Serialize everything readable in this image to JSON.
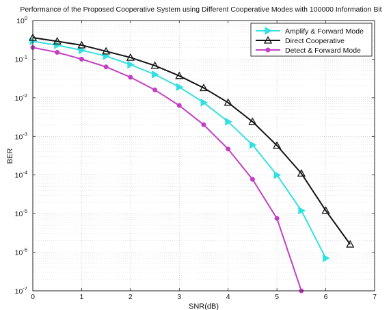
{
  "chart_data": {
    "type": "line",
    "title": "Performance of the Proposed Cooperative System using Different Cooperative Modes with 100000 Information Bit",
    "xlabel": "SNR(dB)",
    "ylabel": "BER",
    "xlim": [
      0,
      7
    ],
    "ylim": [
      1e-07,
      1
    ],
    "yscale": "log",
    "grid": "on (major and minor)",
    "legend_position": "top-right",
    "x_ticks": [
      "0",
      "1",
      "2",
      "3",
      "4",
      "5",
      "6",
      "7"
    ],
    "y_ticks": [
      {
        "base": "10",
        "exp": "0",
        "value": 1
      },
      {
        "base": "10",
        "exp": "-1",
        "value": 0.1
      },
      {
        "base": "10",
        "exp": "-2",
        "value": 0.01
      },
      {
        "base": "10",
        "exp": "-3",
        "value": 0.001
      },
      {
        "base": "10",
        "exp": "-4",
        "value": 0.0001
      },
      {
        "base": "10",
        "exp": "-5",
        "value": 1e-05
      },
      {
        "base": "10",
        "exp": "-6",
        "value": 1e-06
      },
      {
        "base": "10",
        "exp": "-7",
        "value": 1e-07
      }
    ],
    "series": [
      {
        "name": "Amplify & Forward Mode",
        "color": "#33e0e0",
        "marker": "triangle-right",
        "x": [
          0,
          0.5,
          1,
          1.5,
          2,
          2.5,
          3,
          3.5,
          4,
          4.5,
          5,
          5.5,
          6
        ],
        "y": [
          0.29,
          0.23,
          0.17,
          0.12,
          0.072,
          0.04,
          0.019,
          0.0075,
          0.0024,
          0.0006,
          0.0001,
          1.2e-05,
          7e-07
        ]
      },
      {
        "name": "Direct Cooperative",
        "color": "#111111",
        "marker": "triangle-up",
        "x": [
          0,
          0.5,
          1,
          1.5,
          2,
          2.5,
          3,
          3.5,
          4,
          4.5,
          5,
          5.5,
          6,
          6.5
        ],
        "y": [
          0.36,
          0.29,
          0.23,
          0.16,
          0.11,
          0.068,
          0.037,
          0.018,
          0.0075,
          0.0024,
          0.00058,
          0.00011,
          1.2e-05,
          1.6e-06
        ]
      },
      {
        "name": "Detect & Forward Mode",
        "color": "#c43fc4",
        "marker": "circle",
        "x": [
          0,
          0.5,
          1,
          1.5,
          2,
          2.5,
          3,
          3.5,
          4,
          4.5,
          5,
          5.5
        ],
        "y": [
          0.2,
          0.15,
          0.1,
          0.063,
          0.034,
          0.016,
          0.0063,
          0.002,
          0.00047,
          7.7e-05,
          7.5e-06,
          1e-07
        ]
      }
    ]
  }
}
